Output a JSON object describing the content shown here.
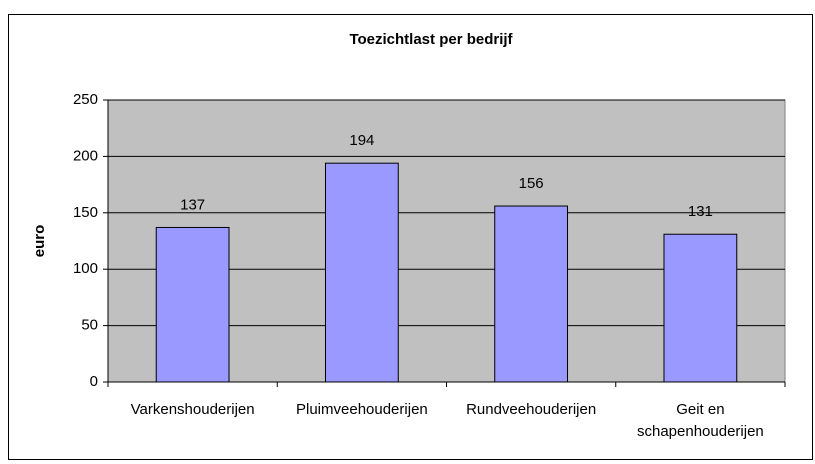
{
  "chart_data": {
    "type": "bar",
    "title": "Toezichtlast per bedrijf",
    "y_label": "euro",
    "categories": [
      "Varkenshouderijen",
      "Pluimveehouderijen",
      "Rundveehouderijen",
      "Geit en schapenhouderijen"
    ],
    "values": [
      137,
      194,
      156,
      131
    ],
    "color": "#9999ff",
    "ylim": [
      0,
      250
    ],
    "yticks": [
      0,
      50,
      100,
      150,
      200,
      250
    ],
    "grid": true
  }
}
